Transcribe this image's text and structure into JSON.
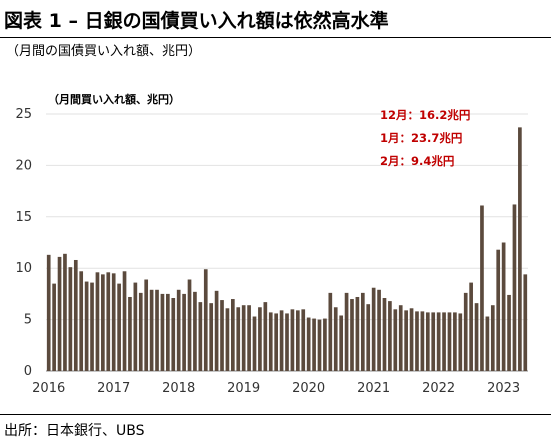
{
  "title": "図表 1 – 日銀の国債買い入れ額は依然高水準",
  "subtitle": "（月間の国債買い入れ額、兆円）",
  "source": "出所：日本銀行、UBS",
  "chart_data": {
    "type": "bar",
    "color": "#5b4a3d",
    "ylabel": "（月間買い入れ額、兆円）",
    "ylim": [
      0,
      25
    ],
    "yticks": [
      0,
      5,
      10,
      15,
      20,
      25
    ],
    "xticks": [
      {
        "label": "2016",
        "index": 0
      },
      {
        "label": "2017",
        "index": 12
      },
      {
        "label": "2018",
        "index": 24
      },
      {
        "label": "2019",
        "index": 36
      },
      {
        "label": "2020",
        "index": 48
      },
      {
        "label": "2021",
        "index": 60
      },
      {
        "label": "2022",
        "index": 72
      },
      {
        "label": "2023",
        "index": 84
      }
    ],
    "x": [
      "2016-01",
      "2016-02",
      "2016-03",
      "2016-04",
      "2016-05",
      "2016-06",
      "2016-07",
      "2016-08",
      "2016-09",
      "2016-10",
      "2016-11",
      "2016-12",
      "2017-01",
      "2017-02",
      "2017-03",
      "2017-04",
      "2017-05",
      "2017-06",
      "2017-07",
      "2017-08",
      "2017-09",
      "2017-10",
      "2017-11",
      "2017-12",
      "2018-01",
      "2018-02",
      "2018-03",
      "2018-04",
      "2018-05",
      "2018-06",
      "2018-07",
      "2018-08",
      "2018-09",
      "2018-10",
      "2018-11",
      "2018-12",
      "2019-01",
      "2019-02",
      "2019-03",
      "2019-04",
      "2019-05",
      "2019-06",
      "2019-07",
      "2019-08",
      "2019-09",
      "2019-10",
      "2019-11",
      "2019-12",
      "2020-01",
      "2020-02",
      "2020-03",
      "2020-04",
      "2020-05",
      "2020-06",
      "2020-07",
      "2020-08",
      "2020-09",
      "2020-10",
      "2020-11",
      "2020-12",
      "2021-01",
      "2021-02",
      "2021-03",
      "2021-04",
      "2021-05",
      "2021-06",
      "2021-07",
      "2021-08",
      "2021-09",
      "2021-10",
      "2021-11",
      "2021-12",
      "2022-01",
      "2022-02",
      "2022-03",
      "2022-04",
      "2022-05",
      "2022-06",
      "2022-07",
      "2022-08",
      "2022-09",
      "2022-10",
      "2022-11",
      "2022-12",
      "2023-01",
      "2023-02"
    ],
    "values": [
      11.3,
      8.5,
      11.1,
      11.4,
      10.1,
      10.8,
      9.7,
      8.7,
      8.6,
      9.6,
      9.4,
      9.6,
      9.5,
      8.5,
      9.7,
      7.2,
      8.6,
      7.6,
      8.9,
      7.9,
      7.9,
      7.5,
      7.5,
      7.1,
      7.9,
      7.5,
      8.9,
      7.7,
      6.7,
      9.9,
      6.6,
      7.8,
      6.9,
      6.1,
      7.0,
      6.2,
      6.4,
      6.4,
      5.3,
      6.2,
      6.7,
      5.7,
      5.6,
      5.9,
      5.6,
      6.0,
      5.9,
      6.0,
      5.2,
      5.1,
      5.0,
      5.1,
      7.6,
      6.2,
      5.4,
      7.6,
      7.0,
      7.2,
      7.6,
      6.5,
      8.1,
      7.9,
      7.1,
      6.8,
      6.0,
      6.4,
      5.9,
      6.1,
      5.8,
      5.8,
      5.7,
      5.7,
      5.7,
      5.7,
      5.7,
      5.7,
      5.6,
      7.6,
      8.6,
      6.6,
      16.1,
      5.3,
      6.4,
      11.8,
      12.5,
      7.4
    ],
    "extra_bars": [
      {
        "label": "12月",
        "value": 16.2
      },
      {
        "label": "1月",
        "value": 23.7
      },
      {
        "label": "2月",
        "value": 9.4
      }
    ],
    "annotations": [
      "12月：16.2兆円",
      "1月：23.7兆円",
      "2月：9.4兆円"
    ]
  }
}
